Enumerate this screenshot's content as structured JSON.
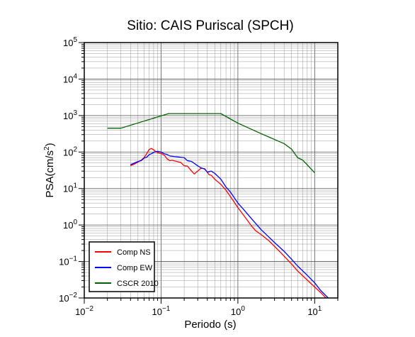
{
  "chart_data": {
    "type": "line",
    "title": "Sitio: CAIS Puriscal (SPCH)",
    "xlabel": "Periodo (s)",
    "ylabel_base": "PSA(cm/s",
    "ylabel_sup": "2",
    "ylabel_close": ")",
    "x_scale": "log",
    "y_scale": "log",
    "xlim": [
      0.01,
      20
    ],
    "ylim": [
      0.01,
      100000
    ],
    "grid": true,
    "legend_position": "bottom-left",
    "x_ticks": [
      {
        "value": 0.01,
        "base": "10",
        "exp": "−2"
      },
      {
        "value": 0.1,
        "base": "10",
        "exp": "−1"
      },
      {
        "value": 1,
        "base": "10",
        "exp": "0"
      },
      {
        "value": 10,
        "base": "10",
        "exp": "1"
      }
    ],
    "y_ticks": [
      {
        "value": 0.01,
        "base": "10",
        "exp": "−2"
      },
      {
        "value": 0.1,
        "base": "10",
        "exp": "−1"
      },
      {
        "value": 1,
        "base": "10",
        "exp": "0"
      },
      {
        "value": 10,
        "base": "10",
        "exp": "1"
      },
      {
        "value": 100,
        "base": "10",
        "exp": "2"
      },
      {
        "value": 1000,
        "base": "10",
        "exp": "3"
      },
      {
        "value": 10000,
        "base": "10",
        "exp": "4"
      },
      {
        "value": 100000,
        "base": "10",
        "exp": "5"
      }
    ],
    "series": [
      {
        "name": "Comp NS",
        "color": "#ff0000",
        "points": [
          [
            0.04,
            42
          ],
          [
            0.045,
            47
          ],
          [
            0.05,
            53
          ],
          [
            0.055,
            60
          ],
          [
            0.06,
            70
          ],
          [
            0.065,
            90
          ],
          [
            0.07,
            118
          ],
          [
            0.075,
            125
          ],
          [
            0.08,
            115
          ],
          [
            0.085,
            103
          ],
          [
            0.09,
            96
          ],
          [
            0.1,
            92
          ],
          [
            0.11,
            82
          ],
          [
            0.12,
            65
          ],
          [
            0.13,
            58
          ],
          [
            0.14,
            60
          ],
          [
            0.15,
            57
          ],
          [
            0.16,
            55
          ],
          [
            0.18,
            52
          ],
          [
            0.2,
            42
          ],
          [
            0.22,
            41
          ],
          [
            0.25,
            30
          ],
          [
            0.27,
            25
          ],
          [
            0.3,
            30
          ],
          [
            0.33,
            36
          ],
          [
            0.37,
            35
          ],
          [
            0.42,
            24
          ],
          [
            0.45,
            23
          ],
          [
            0.5,
            18
          ],
          [
            0.6,
            13
          ],
          [
            0.7,
            9
          ],
          [
            0.8,
            6
          ],
          [
            1,
            3
          ],
          [
            1.2,
            1.8
          ],
          [
            1.5,
            0.95
          ],
          [
            1.7,
            0.7
          ],
          [
            2,
            0.55
          ],
          [
            2.5,
            0.38
          ],
          [
            3,
            0.26
          ],
          [
            4,
            0.14
          ],
          [
            5,
            0.085
          ],
          [
            6,
            0.055
          ],
          [
            8,
            0.031
          ],
          [
            10,
            0.02
          ],
          [
            12,
            0.014
          ],
          [
            14,
            0.01
          ]
        ]
      },
      {
        "name": "Comp EW",
        "color": "#0000ff",
        "points": [
          [
            0.04,
            45
          ],
          [
            0.045,
            50
          ],
          [
            0.05,
            55
          ],
          [
            0.055,
            58
          ],
          [
            0.06,
            68
          ],
          [
            0.065,
            72
          ],
          [
            0.07,
            85
          ],
          [
            0.075,
            90
          ],
          [
            0.08,
            98
          ],
          [
            0.09,
            105
          ],
          [
            0.1,
            100
          ],
          [
            0.11,
            90
          ],
          [
            0.12,
            85
          ],
          [
            0.13,
            78
          ],
          [
            0.15,
            75
          ],
          [
            0.17,
            73
          ],
          [
            0.2,
            70
          ],
          [
            0.22,
            58
          ],
          [
            0.25,
            55
          ],
          [
            0.3,
            42
          ],
          [
            0.33,
            37
          ],
          [
            0.37,
            34
          ],
          [
            0.4,
            28
          ],
          [
            0.45,
            30
          ],
          [
            0.5,
            26
          ],
          [
            0.6,
            18
          ],
          [
            0.7,
            11
          ],
          [
            0.8,
            8
          ],
          [
            1,
            4
          ],
          [
            1.2,
            2.6
          ],
          [
            1.5,
            1.5
          ],
          [
            2,
            0.75
          ],
          [
            2.5,
            0.48
          ],
          [
            3,
            0.33
          ],
          [
            4,
            0.19
          ],
          [
            5,
            0.115
          ],
          [
            6,
            0.075
          ],
          [
            8,
            0.042
          ],
          [
            10,
            0.026
          ],
          [
            12,
            0.016
          ],
          [
            15,
            0.01
          ]
        ]
      },
      {
        "name": "CSCR 2010",
        "color": "#006400",
        "points": [
          [
            0.02,
            450
          ],
          [
            0.03,
            450
          ],
          [
            0.125,
            1130
          ],
          [
            0.6,
            1130
          ],
          [
            1,
            620
          ],
          [
            2,
            320
          ],
          [
            4,
            170
          ],
          [
            5,
            120
          ],
          [
            6,
            70
          ],
          [
            7,
            60
          ],
          [
            10,
            27
          ]
        ]
      }
    ]
  }
}
